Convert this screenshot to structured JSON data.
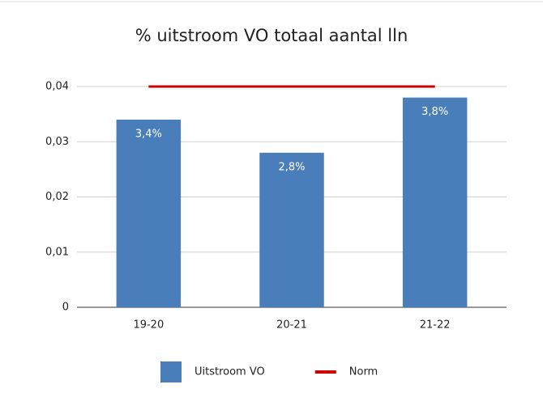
{
  "chart_data": {
    "type": "bar",
    "title": "% uitstroom VO totaal aantal lln",
    "categories": [
      "19-20",
      "20-21",
      "21-22"
    ],
    "series": [
      {
        "name": "Uitstroom VO",
        "type": "bar",
        "color": "#4a7ebb",
        "values": [
          0.034,
          0.028,
          0.038
        ],
        "value_labels": [
          "3,4%",
          "2,8%",
          "3,8%"
        ]
      },
      {
        "name": "Norm",
        "type": "line",
        "color": "#cc0000",
        "values": [
          0.04,
          0.04,
          0.04
        ]
      }
    ],
    "ylim": [
      0,
      0.04
    ],
    "yticks": [
      0,
      {
        "value": 0.01,
        "label": "0,01"
      },
      {
        "value": 0.02,
        "label": "0,02"
      },
      {
        "value": 0.03,
        "label": "0,03"
      },
      {
        "value": 0.04,
        "label": "0,04"
      }
    ],
    "grid": true,
    "legend": "bottom"
  }
}
